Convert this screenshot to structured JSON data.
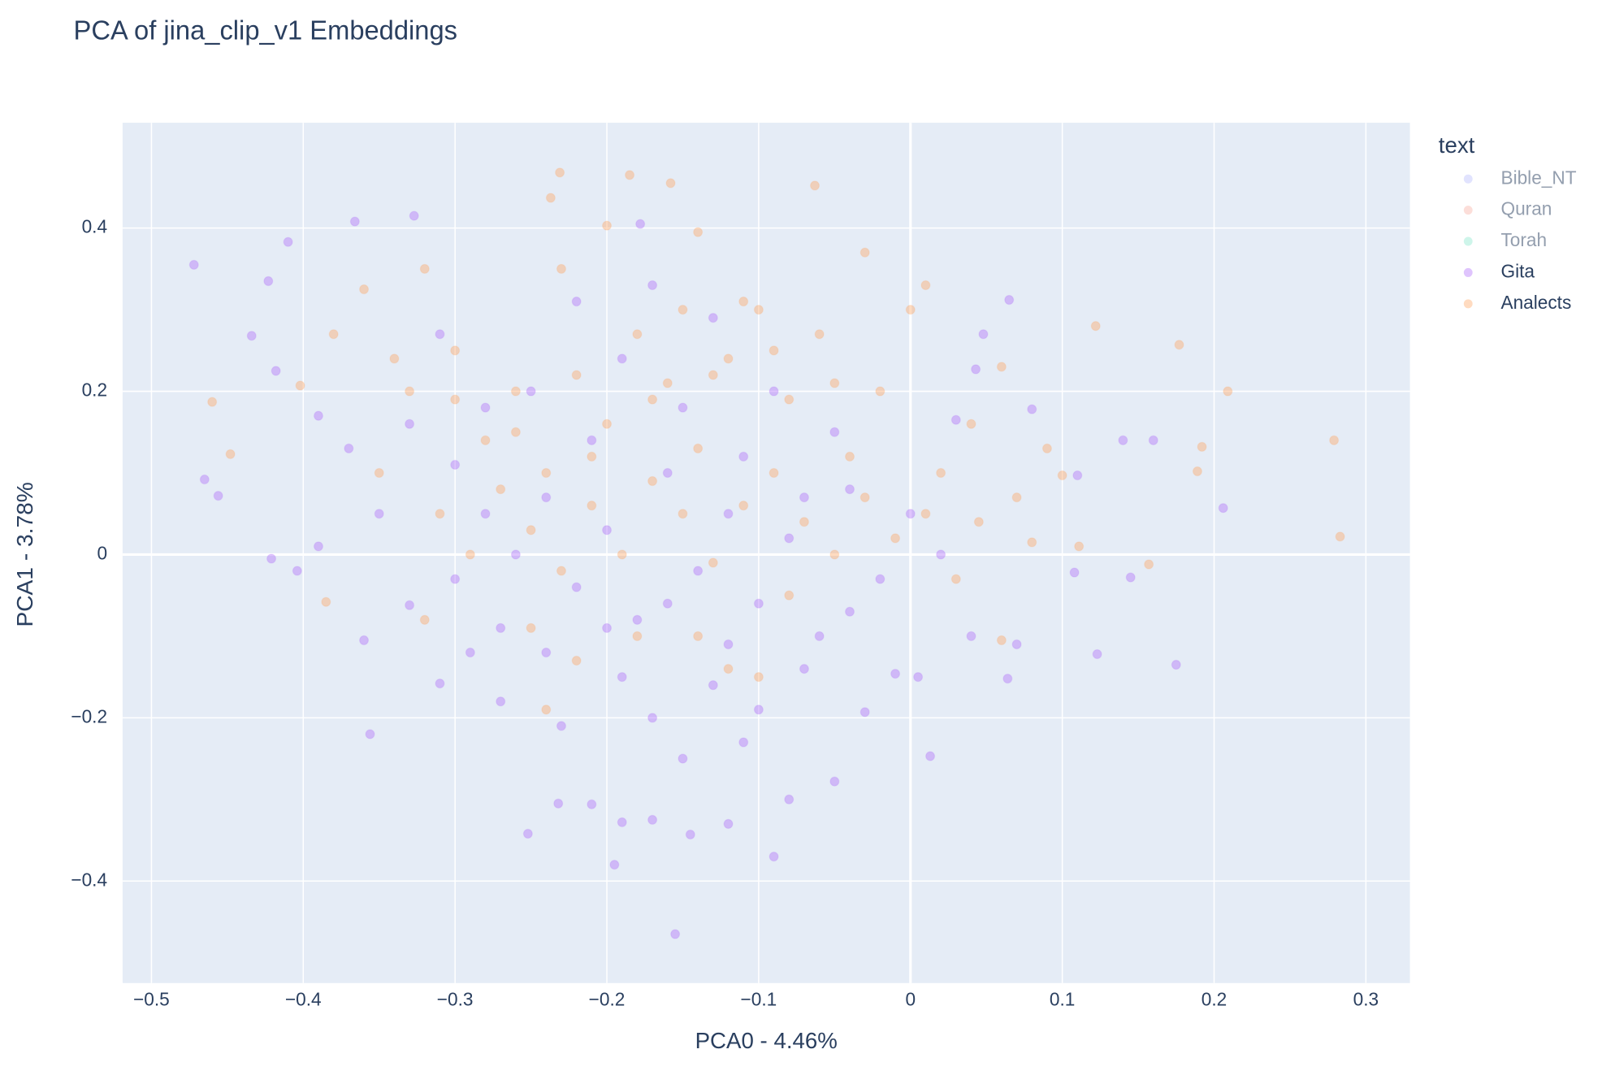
{
  "chart_data": {
    "type": "scatter",
    "title": "PCA of jina_clip_v1 Embeddings",
    "x_label": "PCA0 - 4.46%",
    "y_label": "PCA1 - 3.78%",
    "legend_title": "text",
    "legend_position": "right",
    "grid": true,
    "xlim": [
      -0.519,
      0.329
    ],
    "ylim": [
      -0.525,
      0.529
    ],
    "xticks": [
      {
        "value": -0.5,
        "label": "−0.5"
      },
      {
        "value": -0.4,
        "label": "−0.4"
      },
      {
        "value": -0.3,
        "label": "−0.3"
      },
      {
        "value": -0.2,
        "label": "−0.2"
      },
      {
        "value": -0.1,
        "label": "−0.1"
      },
      0,
      0.1,
      0.2,
      0.3
    ],
    "yticks": [
      {
        "value": -0.4,
        "label": "−0.4"
      },
      {
        "value": -0.2,
        "label": "−0.2"
      },
      0,
      0.2,
      0.4
    ],
    "series": [
      {
        "name": "Bible_NT",
        "color": "#636efa",
        "visible": false,
        "x": [],
        "y": []
      },
      {
        "name": "Quran",
        "color": "#EF553B",
        "visible": false,
        "x": [],
        "y": []
      },
      {
        "name": "Torah",
        "color": "#00cc96",
        "visible": false,
        "x": [],
        "y": []
      },
      {
        "name": "Gita",
        "color": "#ab63fa",
        "visible": true,
        "x": [
          -0.472,
          -0.155,
          0.206,
          0.175,
          -0.356,
          -0.09,
          -0.195,
          -0.41,
          -0.366,
          -0.327,
          -0.178,
          -0.423,
          -0.434,
          -0.418,
          -0.465,
          -0.456,
          -0.421,
          -0.404,
          -0.39,
          -0.36,
          -0.33,
          -0.31,
          -0.29,
          -0.27,
          -0.252,
          -0.232,
          -0.21,
          -0.19,
          -0.17,
          -0.145,
          -0.12,
          -0.11,
          -0.08,
          -0.05,
          -0.03,
          -0.01,
          0.005,
          0.013,
          0.04,
          0.064,
          0.07,
          0.108,
          0.123,
          0.145,
          0.14,
          0.16,
          0.11,
          0.065,
          0.048,
          0.043,
          0.08,
          -0.3,
          -0.28,
          -0.26,
          -0.24,
          -0.22,
          -0.2,
          -0.18,
          -0.16,
          -0.14,
          -0.12,
          -0.1,
          -0.08,
          -0.06,
          -0.04,
          -0.02,
          0.0,
          0.02,
          -0.33,
          -0.31,
          -0.25,
          -0.21,
          -0.19,
          -0.17,
          -0.15,
          -0.13,
          -0.11,
          -0.09,
          -0.07,
          -0.05,
          -0.35,
          -0.37,
          -0.39,
          -0.27,
          -0.23,
          -0.19,
          -0.17,
          -0.15,
          -0.13,
          -0.1,
          -0.07,
          -0.04,
          -0.24,
          -0.2,
          -0.16,
          -0.12,
          -0.3,
          -0.28,
          -0.22,
          0.03
        ],
        "y": [
          0.355,
          -0.465,
          0.057,
          -0.135,
          -0.22,
          -0.37,
          -0.38,
          0.383,
          0.408,
          0.415,
          0.405,
          0.335,
          0.268,
          0.225,
          0.092,
          0.072,
          -0.005,
          -0.02,
          0.01,
          -0.105,
          -0.062,
          -0.158,
          -0.12,
          -0.09,
          -0.342,
          -0.305,
          -0.306,
          -0.328,
          -0.325,
          -0.343,
          -0.33,
          -0.23,
          -0.3,
          -0.278,
          -0.193,
          -0.146,
          -0.15,
          -0.247,
          -0.1,
          -0.152,
          -0.11,
          -0.022,
          -0.122,
          -0.028,
          0.14,
          0.14,
          0.097,
          0.312,
          0.27,
          0.227,
          0.178,
          0.11,
          0.05,
          0.0,
          0.07,
          -0.04,
          0.03,
          -0.08,
          0.1,
          -0.02,
          0.05,
          -0.06,
          0.02,
          -0.1,
          0.08,
          -0.03,
          0.05,
          0.0,
          0.16,
          0.27,
          0.2,
          0.14,
          0.24,
          0.33,
          0.18,
          0.29,
          0.12,
          0.2,
          0.07,
          0.15,
          0.05,
          0.13,
          0.17,
          -0.18,
          -0.21,
          -0.15,
          -0.2,
          -0.25,
          -0.16,
          -0.19,
          -0.14,
          -0.07,
          -0.12,
          -0.09,
          -0.06,
          -0.11,
          -0.03,
          0.18,
          0.31,
          0.165
        ]
      },
      {
        "name": "Analects",
        "color": "#FFA15A",
        "visible": true,
        "x": [
          0.283,
          0.279,
          0.209,
          -0.231,
          -0.063,
          -0.185,
          0.177,
          -0.46,
          -0.158,
          -0.2,
          -0.14,
          -0.237,
          0.122,
          0.192,
          0.189,
          0.157,
          0.111,
          0.1,
          0.08,
          0.06,
          -0.385,
          -0.448,
          -0.402,
          -0.36,
          -0.32,
          -0.3,
          -0.28,
          -0.26,
          -0.24,
          -0.22,
          -0.2,
          -0.18,
          -0.16,
          -0.14,
          -0.12,
          -0.1,
          -0.08,
          -0.06,
          -0.04,
          -0.02,
          0.0,
          0.02,
          0.04,
          0.06,
          0.07,
          0.09,
          0.045,
          -0.35,
          -0.33,
          -0.31,
          -0.29,
          -0.27,
          -0.25,
          -0.23,
          -0.21,
          -0.19,
          -0.17,
          -0.15,
          -0.13,
          -0.11,
          -0.09,
          -0.07,
          -0.05,
          -0.03,
          -0.01,
          0.01,
          -0.23,
          -0.15,
          -0.11,
          -0.03,
          -0.38,
          -0.34,
          -0.3,
          -0.26,
          -0.21,
          -0.17,
          -0.13,
          -0.09,
          -0.05,
          0.01,
          -0.25,
          -0.22,
          -0.18,
          -0.14,
          -0.12,
          -0.1,
          -0.24,
          -0.32,
          -0.08,
          0.03
        ],
        "y": [
          0.022,
          0.14,
          0.2,
          0.468,
          0.452,
          0.465,
          0.257,
          0.187,
          0.455,
          0.403,
          0.395,
          0.437,
          0.28,
          0.132,
          0.102,
          -0.012,
          0.01,
          0.097,
          0.015,
          -0.105,
          -0.058,
          0.123,
          0.207,
          0.325,
          0.35,
          0.25,
          0.14,
          0.2,
          0.1,
          0.22,
          0.16,
          0.27,
          0.21,
          0.13,
          0.24,
          0.3,
          0.19,
          0.27,
          0.12,
          0.2,
          0.3,
          0.1,
          0.16,
          0.23,
          0.07,
          0.13,
          0.04,
          0.1,
          0.2,
          0.05,
          0.0,
          0.08,
          0.03,
          -0.02,
          0.06,
          0.0,
          0.09,
          0.05,
          -0.01,
          0.06,
          0.1,
          0.04,
          0.0,
          0.07,
          0.02,
          0.05,
          0.35,
          0.3,
          0.31,
          0.37,
          0.27,
          0.24,
          0.19,
          0.15,
          0.12,
          0.19,
          0.22,
          0.25,
          0.21,
          0.33,
          -0.09,
          -0.13,
          -0.1,
          -0.1,
          -0.14,
          -0.15,
          -0.19,
          -0.08,
          -0.05,
          -0.03
        ]
      }
    ]
  }
}
